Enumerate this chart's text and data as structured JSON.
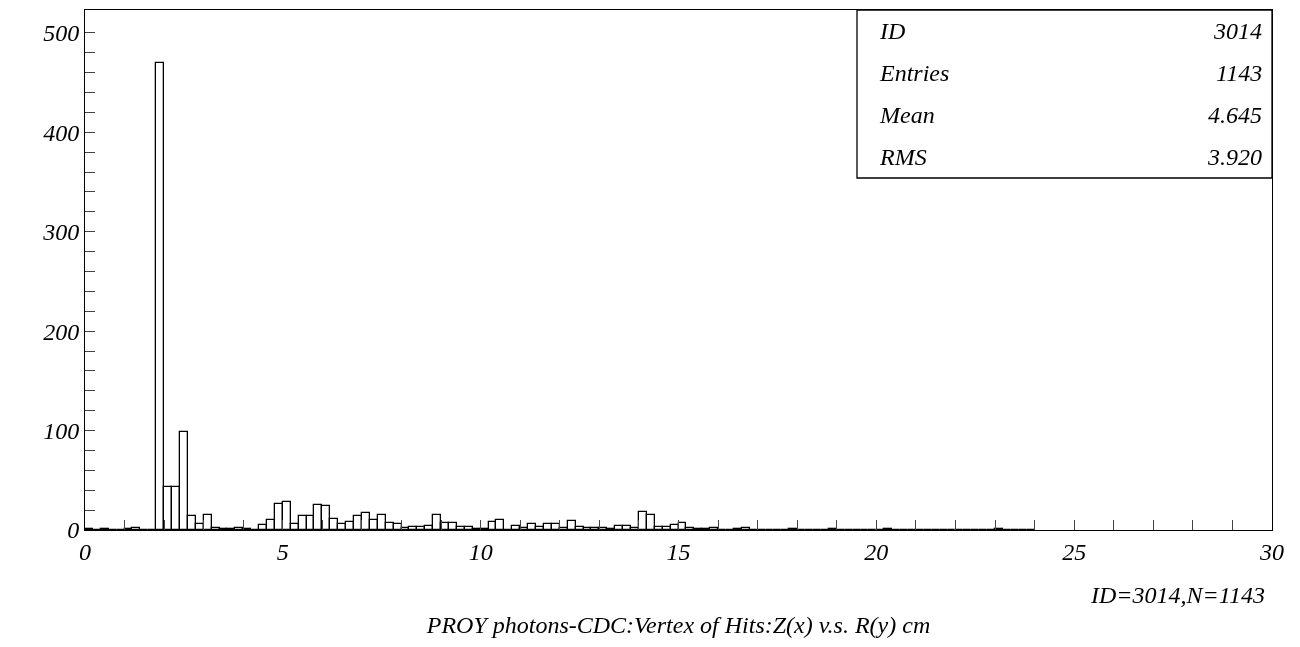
{
  "chart_data": {
    "type": "histogram",
    "xlabel": "PROY photons-CDC:Vertex of Hits:Z(x) v.s. R(y) cm",
    "annotations": [
      "ID",
      "3014",
      "Entries",
      "1143",
      "Mean",
      "4.645",
      "RMS",
      "3.920",
      "ID=3014,N=1143"
    ],
    "bins": [
      0,
      0.2,
      0.4,
      0.6,
      0.8,
      1.0,
      1.2,
      1.4,
      1.6,
      1.8,
      2.0,
      2.2,
      2.4,
      2.6,
      2.8,
      3.0,
      3.2,
      3.4,
      3.6,
      3.8,
      4.0,
      4.2,
      4.4,
      4.6,
      4.8,
      5.0,
      5.2,
      5.4,
      5.6,
      5.8,
      6.0,
      6.2,
      6.4,
      6.6,
      6.8,
      7.0,
      7.2,
      7.4,
      7.6,
      7.8,
      8.0,
      8.2,
      8.4,
      8.6,
      8.8,
      9.0,
      9.2,
      9.4,
      9.6,
      9.8,
      10.0,
      10.2,
      10.4,
      10.6,
      10.8,
      11.0,
      11.2,
      11.4,
      11.6,
      11.8,
      12.0,
      12.2,
      12.4,
      12.6,
      12.8,
      13.0,
      13.2,
      13.4,
      13.6,
      13.8,
      14.0,
      14.2,
      14.4,
      14.6,
      14.8,
      15.0,
      15.2,
      15.4,
      15.6,
      15.8,
      16.0,
      16.2,
      16.4,
      16.6,
      16.8,
      17.0,
      17.2,
      17.4,
      17.6,
      17.8,
      18.0,
      18.2,
      18.4,
      18.6,
      18.8,
      19.0,
      19.2,
      19.4,
      19.6,
      19.8,
      20.0,
      20.2,
      20.4,
      20.6,
      20.8,
      21.0,
      21.2,
      21.4,
      21.6,
      21.8,
      22.0,
      22.2,
      22.4,
      22.6,
      22.8,
      23.0,
      23.2,
      23.4,
      23.6,
      23.8,
      24.0
    ],
    "values": [
      1,
      0,
      1,
      0,
      0,
      1,
      2,
      0,
      0,
      470,
      43,
      43,
      99,
      14,
      6,
      15,
      2,
      1,
      1,
      2,
      1,
      0,
      5,
      10,
      26,
      28,
      6,
      14,
      14,
      25,
      24,
      11,
      6,
      8,
      14,
      17,
      10,
      15,
      7,
      6,
      2,
      3,
      3,
      4,
      15,
      7,
      7,
      3,
      3,
      1,
      1,
      8,
      10,
      0,
      4,
      2,
      6,
      3,
      6,
      6,
      2,
      9,
      3,
      2,
      2,
      2,
      1,
      4,
      4,
      2,
      18,
      15,
      3,
      3,
      5,
      7,
      2,
      1,
      1,
      2,
      0,
      0,
      1,
      2,
      0,
      0,
      0,
      0,
      0,
      1,
      0,
      0,
      0,
      0,
      1,
      0,
      0,
      0,
      0,
      0,
      0,
      1,
      0,
      0,
      0,
      0,
      0,
      0,
      0,
      0,
      0,
      0,
      0,
      0,
      0,
      1,
      0,
      0,
      0,
      0
    ],
    "xlim": [
      0,
      30
    ],
    "xticks": [
      0,
      {
        "value": 1,
        "label": null
      },
      {
        "value": 2,
        "label": null
      },
      {
        "value": 3,
        "label": null
      },
      {
        "value": 4,
        "label": null
      },
      5,
      {
        "value": 6,
        "label": null
      },
      {
        "value": 7,
        "label": null
      },
      {
        "value": 8,
        "label": null
      },
      {
        "value": 9,
        "label": null
      },
      10,
      {
        "value": 11,
        "label": null
      },
      {
        "value": 12,
        "label": null
      },
      {
        "value": 13,
        "label": null
      },
      {
        "value": 14,
        "label": null
      },
      15,
      {
        "value": 16,
        "label": null
      },
      {
        "value": 17,
        "label": null
      },
      {
        "value": 18,
        "label": null
      },
      {
        "value": 19,
        "label": null
      },
      20,
      {
        "value": 21,
        "label": null
      },
      {
        "value": 22,
        "label": null
      },
      {
        "value": 23,
        "label": null
      },
      {
        "value": 24,
        "label": null
      },
      25,
      {
        "value": 26,
        "label": null
      },
      {
        "value": 27,
        "label": null
      },
      {
        "value": 28,
        "label": null
      },
      {
        "value": 29,
        "label": null
      },
      30
    ],
    "ylim": [
      0,
      523
    ],
    "yticks": [
      0,
      {
        "value": 20,
        "label": null
      },
      {
        "value": 40,
        "label": null
      },
      {
        "value": 60,
        "label": null
      },
      {
        "value": 80,
        "label": null
      },
      100,
      {
        "value": 120,
        "label": null
      },
      {
        "value": 140,
        "label": null
      },
      {
        "value": 160,
        "label": null
      },
      {
        "value": 180,
        "label": null
      },
      200,
      {
        "value": 220,
        "label": null
      },
      {
        "value": 240,
        "label": null
      },
      {
        "value": 260,
        "label": null
      },
      {
        "value": 280,
        "label": null
      },
      300,
      {
        "value": 320,
        "label": null
      },
      {
        "value": 340,
        "label": null
      },
      {
        "value": 360,
        "label": null
      },
      {
        "value": 380,
        "label": null
      },
      400,
      {
        "value": 420,
        "label": null
      },
      {
        "value": 440,
        "label": null
      },
      {
        "value": 460,
        "label": null
      },
      {
        "value": 480,
        "label": null
      },
      500
    ],
    "color": "#000000"
  }
}
